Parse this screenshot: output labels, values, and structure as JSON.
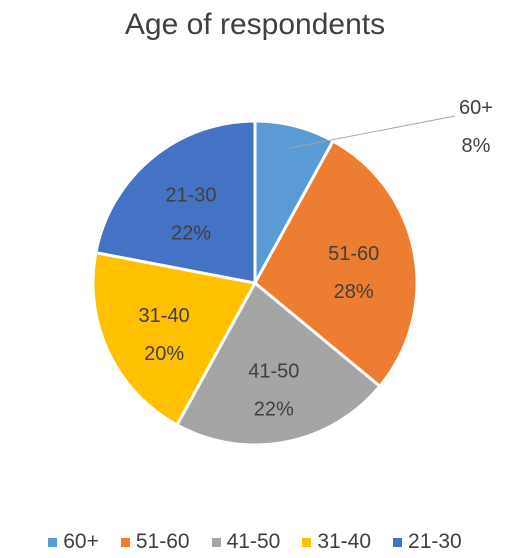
{
  "chart_data": {
    "type": "pie",
    "title": "Age of respondents",
    "slices": [
      {
        "category": "60+",
        "value": 8,
        "label": "8%",
        "color": "#5B9BD5"
      },
      {
        "category": "51-60",
        "value": 28,
        "label": "28%",
        "color": "#ED7D31"
      },
      {
        "category": "41-50",
        "value": 22,
        "label": "22%",
        "color": "#A5A5A5"
      },
      {
        "category": "31-40",
        "value": 20,
        "label": "20%",
        "color": "#FFC000"
      },
      {
        "category": "21-30",
        "value": 22,
        "label": "22%",
        "color": "#4472C4"
      }
    ],
    "legend": {
      "position": "bottom",
      "entries": [
        "60+",
        "51-60",
        "41-50",
        "31-40",
        "21-30"
      ]
    },
    "start_angle": "top",
    "direction": "clockwise"
  }
}
